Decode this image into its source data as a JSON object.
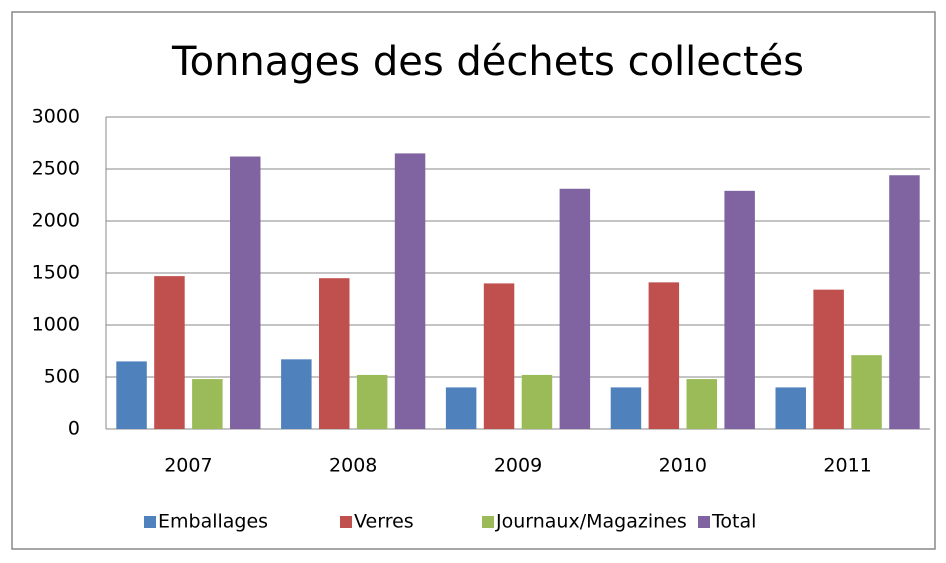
{
  "chart_data": {
    "type": "bar",
    "title": "Tonnages des déchets collectés",
    "categories": [
      "2007",
      "2008",
      "2009",
      "2010",
      "2011"
    ],
    "series": [
      {
        "name": "Emballages",
        "color": "#4f81bd",
        "values": [
          650,
          670,
          400,
          400,
          400
        ]
      },
      {
        "name": "Verres",
        "color": "#c0504d",
        "values": [
          1470,
          1450,
          1400,
          1410,
          1340
        ]
      },
      {
        "name": "Journaux/Magazines",
        "color": "#9bbb59",
        "values": [
          480,
          520,
          520,
          480,
          710
        ]
      },
      {
        "name": "Total",
        "color": "#8064a2",
        "values": [
          2620,
          2650,
          2310,
          2290,
          2440
        ]
      }
    ],
    "ylim": [
      0,
      3000
    ],
    "yticks": [
      0,
      500,
      1000,
      1500,
      2000,
      2500,
      3000
    ],
    "grid": true,
    "legend": "bottom"
  }
}
